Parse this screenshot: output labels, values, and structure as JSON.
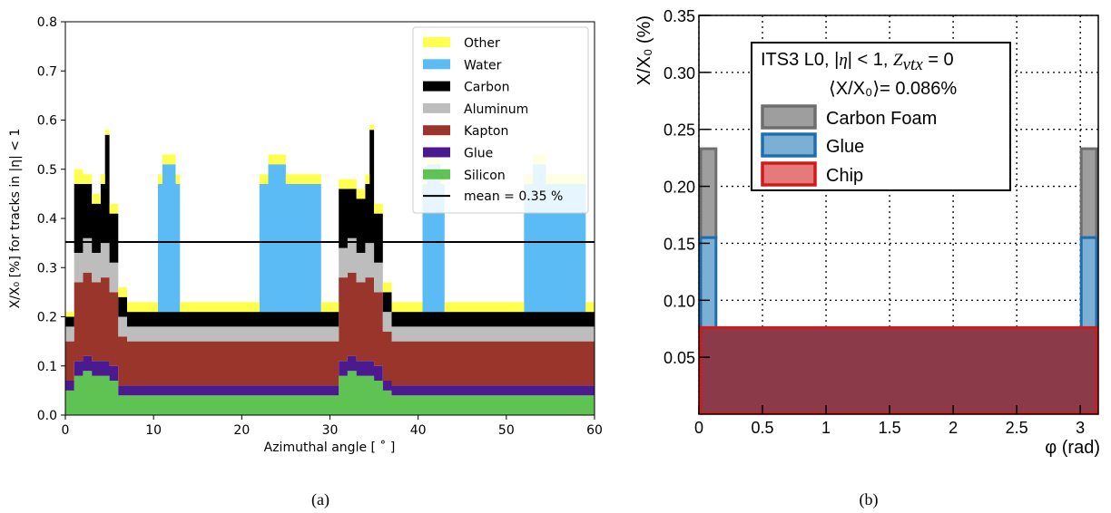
{
  "figure": {
    "captions": [
      "(a)",
      "(b)"
    ]
  },
  "chart_data": [
    {
      "type": "area",
      "xlabel": "Azimuthal angle [$^\\circ$]",
      "xlabel_text": "Azimuthal angle [ ˚ ]",
      "ylabel_text": "X/X₀ [%] for tracks in |η| < 1",
      "xlim": [
        0,
        60
      ],
      "ylim": [
        0,
        0.8
      ],
      "xticks": [
        "0",
        "10",
        "20",
        "30",
        "40",
        "50",
        "60"
      ],
      "yticks": [
        "0.0",
        "0.1",
        "0.2",
        "0.3",
        "0.4",
        "0.5",
        "0.6",
        "0.7",
        "0.8"
      ],
      "legend_position": "top-right",
      "mean_label": "mean = 0.35 %",
      "mean_value": 0.352,
      "colors": {
        "Other": "#ffff4d",
        "Water": "#5bbcf5",
        "Carbon": "#000000",
        "Aluminum": "#bdbdbd",
        "Kapton": "#9a352c",
        "Glue": "#4b1a8f",
        "Silicon": "#5ec353"
      },
      "series_order": [
        "Silicon",
        "Glue",
        "Kapton",
        "Aluminum",
        "Carbon",
        "Water",
        "Other"
      ],
      "legend": [
        "Other",
        "Water",
        "Carbon",
        "Aluminum",
        "Kapton",
        "Glue",
        "Silicon"
      ],
      "x": [
        0,
        1,
        2,
        3,
        4,
        4.5,
        5,
        6,
        7,
        10,
        10.5,
        11,
        12,
        12.5,
        13,
        17,
        18,
        21,
        22,
        23,
        24,
        25,
        29,
        30,
        31,
        32,
        33,
        34,
        34.5,
        35,
        36,
        37,
        40,
        40.5,
        41,
        42,
        42.5,
        43,
        51,
        52,
        53,
        54,
        54.5,
        59,
        60
      ],
      "series": [
        {
          "name": "Silicon",
          "values": [
            0.05,
            0.08,
            0.09,
            0.08,
            0.08,
            0.08,
            0.07,
            0.04,
            0.04,
            0.04,
            0.04,
            0.04,
            0.04,
            0.04,
            0.04,
            0.04,
            0.04,
            0.04,
            0.04,
            0.04,
            0.04,
            0.04,
            0.04,
            0.04,
            0.08,
            0.09,
            0.08,
            0.08,
            0.08,
            0.07,
            0.05,
            0.04,
            0.04,
            0.04,
            0.04,
            0.04,
            0.04,
            0.04,
            0.04,
            0.04,
            0.04,
            0.04,
            0.04,
            0.04,
            0.04
          ]
        },
        {
          "name": "Glue",
          "values": [
            0.02,
            0.03,
            0.03,
            0.03,
            0.03,
            0.03,
            0.03,
            0.02,
            0.02,
            0.02,
            0.02,
            0.02,
            0.02,
            0.02,
            0.02,
            0.02,
            0.02,
            0.02,
            0.02,
            0.02,
            0.02,
            0.02,
            0.02,
            0.02,
            0.03,
            0.03,
            0.03,
            0.03,
            0.03,
            0.03,
            0.02,
            0.02,
            0.02,
            0.02,
            0.02,
            0.02,
            0.02,
            0.02,
            0.02,
            0.02,
            0.02,
            0.02,
            0.02,
            0.02,
            0.02
          ]
        },
        {
          "name": "Kapton",
          "values": [
            0.08,
            0.16,
            0.17,
            0.16,
            0.17,
            0.17,
            0.15,
            0.1,
            0.09,
            0.09,
            0.09,
            0.09,
            0.09,
            0.09,
            0.09,
            0.09,
            0.09,
            0.09,
            0.09,
            0.09,
            0.09,
            0.09,
            0.09,
            0.09,
            0.17,
            0.17,
            0.16,
            0.17,
            0.17,
            0.15,
            0.1,
            0.09,
            0.09,
            0.09,
            0.09,
            0.09,
            0.09,
            0.09,
            0.09,
            0.09,
            0.09,
            0.09,
            0.09,
            0.09,
            0.09
          ]
        },
        {
          "name": "Aluminum",
          "values": [
            0.03,
            0.06,
            0.07,
            0.06,
            0.07,
            0.07,
            0.06,
            0.04,
            0.03,
            0.03,
            0.03,
            0.03,
            0.03,
            0.03,
            0.03,
            0.03,
            0.03,
            0.03,
            0.03,
            0.03,
            0.03,
            0.03,
            0.03,
            0.03,
            0.06,
            0.07,
            0.06,
            0.07,
            0.07,
            0.06,
            0.04,
            0.03,
            0.03,
            0.03,
            0.03,
            0.03,
            0.03,
            0.03,
            0.03,
            0.03,
            0.03,
            0.03,
            0.03,
            0.03,
            0.03
          ]
        },
        {
          "name": "Carbon",
          "values": [
            0.02,
            0.14,
            0.11,
            0.1,
            0.12,
            0.22,
            0.1,
            0.04,
            0.03,
            0.03,
            0.03,
            0.03,
            0.03,
            0.03,
            0.03,
            0.03,
            0.03,
            0.03,
            0.03,
            0.03,
            0.03,
            0.03,
            0.03,
            0.03,
            0.12,
            0.1,
            0.11,
            0.12,
            0.23,
            0.1,
            0.04,
            0.03,
            0.03,
            0.03,
            0.03,
            0.03,
            0.03,
            0.03,
            0.03,
            0.03,
            0.03,
            0.03,
            0.03,
            0.03,
            0.03
          ]
        },
        {
          "name": "Water",
          "values": [
            0.0,
            0.0,
            0.0,
            0.0,
            0.0,
            0.0,
            0.0,
            0.0,
            0.0,
            0.0,
            0.26,
            0.3,
            0.3,
            0.26,
            0.0,
            0.0,
            0.0,
            0.0,
            0.26,
            0.3,
            0.3,
            0.26,
            0.0,
            0.0,
            0.0,
            0.0,
            0.0,
            0.0,
            0.0,
            0.0,
            0.0,
            0.0,
            0.0,
            0.26,
            0.3,
            0.3,
            0.26,
            0.0,
            0.0,
            0.26,
            0.3,
            0.3,
            0.26,
            0.0,
            0.0
          ]
        },
        {
          "name": "Other",
          "values": [
            0.01,
            0.03,
            0.02,
            0.02,
            0.02,
            0.01,
            0.02,
            0.02,
            0.02,
            0.02,
            0.02,
            0.02,
            0.02,
            0.02,
            0.02,
            0.02,
            0.02,
            0.02,
            0.02,
            0.02,
            0.02,
            0.02,
            0.02,
            0.02,
            0.02,
            0.02,
            0.02,
            0.02,
            0.01,
            0.02,
            0.02,
            0.02,
            0.02,
            0.02,
            0.02,
            0.02,
            0.02,
            0.02,
            0.02,
            0.02,
            0.02,
            0.02,
            0.02,
            0.02,
            0.02
          ]
        }
      ]
    },
    {
      "type": "area",
      "xlim": [
        0,
        3.1416
      ],
      "ylim": [
        0,
        0.35
      ],
      "grid": true,
      "xticks": [
        "0",
        "0.5",
        "1",
        "1.5",
        "2",
        "2.5",
        "3"
      ],
      "xtick_values": [
        0,
        0.5,
        1,
        1.5,
        2,
        2.5,
        3
      ],
      "yticks": [
        "0.05",
        "0.10",
        "0.15",
        "0.20",
        "0.25",
        "0.30",
        "0.35"
      ],
      "ytick_values": [
        0.05,
        0.1,
        0.15,
        0.2,
        0.25,
        0.3,
        0.35
      ],
      "xlabel_text": "φ (rad)",
      "ylabel_text": "X/X₀ (%)",
      "legend_position": "top",
      "legend_title": "ITS3 L0, |η| < 1, Z_vtx = 0",
      "legend_title_parts": {
        "prefix": "ITS3 L0, |",
        "eta": "η",
        "mid": "| < 1, ",
        "z": "Z",
        "sub": "vtx",
        "suffix": " = 0"
      },
      "legend_mean": "⟨X/X₀⟩= 0.086%",
      "legend": [
        "Carbon Foam",
        "Glue",
        "Chip"
      ],
      "colors": {
        "Carbon Foam": {
          "fill": "#9e9e9e",
          "stroke": "#6e6e6e"
        },
        "Glue": {
          "fill": "#7bafd4",
          "stroke": "#1f6fae"
        },
        "Chip": {
          "fill": "#8b3a4a",
          "stroke": "#d11a1a",
          "legend_fill": "#e47a7a"
        }
      },
      "series": [
        {
          "name": "Chip",
          "values_flat": 0.076
        },
        {
          "name": "Glue",
          "edge_value": 0.155,
          "edge_width_rad": 0.12
        },
        {
          "name": "Carbon Foam",
          "edge_value": 0.233,
          "edge_width_rad": 0.12
        }
      ]
    }
  ]
}
